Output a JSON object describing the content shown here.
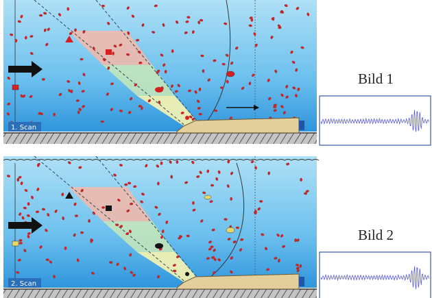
{
  "panels": [
    {
      "scan_label": "1. Scan",
      "image_label": "Bild 1"
    },
    {
      "scan_label": "2. Scan",
      "image_label": "Bild 2"
    }
  ]
}
